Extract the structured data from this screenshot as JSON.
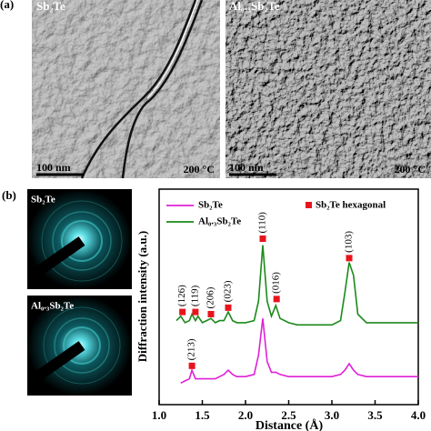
{
  "panel_a": {
    "label": "(a)",
    "images": [
      {
        "sample": "Sb₂Te",
        "scale_bar": "100 nm",
        "temperature": "200 °C"
      },
      {
        "sample": "Al₀.₃Sb₂Te",
        "scale_bar": "100 nm",
        "temperature": "200 °C"
      }
    ]
  },
  "panel_b": {
    "label": "(b)",
    "patterns": [
      "Sb₂Te",
      "Al₀.₃Sb₂Te"
    ]
  },
  "chart_data": {
    "type": "line",
    "xlabel": "Distance (Å)",
    "ylabel": "Diffraction intensity (a.u.)",
    "x": [
      1.0,
      1.1,
      1.2,
      1.25,
      1.3,
      1.35,
      1.38,
      1.42,
      1.45,
      1.5,
      1.55,
      1.6,
      1.65,
      1.7,
      1.75,
      1.8,
      1.85,
      1.9,
      2.0,
      2.1,
      2.15,
      2.2,
      2.25,
      2.3,
      2.35,
      2.4,
      2.5,
      2.6,
      2.8,
      3.0,
      3.1,
      3.15,
      3.2,
      3.25,
      3.3,
      3.4,
      3.6,
      3.8,
      4.0
    ],
    "series": [
      {
        "name": "Sb₂Te",
        "color": "#e020d8",
        "values": [
          null,
          null,
          null,
          1.0,
          1.1,
          1.2,
          1.6,
          1.2,
          1.2,
          1.2,
          1.2,
          1.2,
          1.2,
          1.3,
          1.4,
          1.6,
          1.4,
          1.3,
          1.3,
          1.4,
          2.3,
          4.0,
          2.0,
          1.5,
          1.5,
          1.4,
          1.3,
          1.3,
          1.3,
          1.3,
          1.4,
          1.6,
          1.9,
          1.6,
          1.4,
          1.3,
          1.3,
          1.3,
          1.3
        ]
      },
      {
        "name": "Al₀.₃Sb₂Te",
        "color": "#1a8a1a",
        "values": [
          null,
          null,
          3.9,
          4.1,
          3.8,
          3.9,
          4.2,
          3.9,
          4.1,
          3.8,
          3.9,
          4.0,
          3.8,
          3.9,
          3.9,
          4.3,
          3.9,
          3.8,
          3.8,
          3.9,
          4.8,
          7.4,
          4.8,
          4.1,
          4.6,
          4.0,
          3.8,
          3.7,
          3.7,
          3.7,
          3.9,
          5.2,
          6.6,
          6.0,
          4.2,
          3.8,
          3.8,
          3.8,
          3.8
        ]
      }
    ],
    "xlim": [
      1.0,
      4.0
    ],
    "xticks": [
      {
        "value": 1.0,
        "label": "1.0"
      },
      {
        "value": 1.5,
        "label": "1.5"
      },
      {
        "value": 2.0,
        "label": "2.0"
      },
      {
        "value": 2.5,
        "label": "2.5"
      },
      {
        "value": 3.0,
        "label": "3.0"
      },
      {
        "value": 3.5,
        "label": "3.5"
      },
      {
        "value": 4.0,
        "label": "4.0"
      }
    ],
    "ylim": [
      0,
      10
    ],
    "marker_legend": {
      "label": "Sb₂Te hexagonal",
      "color": "#e8141c"
    },
    "annotations": [
      {
        "text": "(126)",
        "x": 1.27,
        "y": 4.3
      },
      {
        "text": "(119)",
        "x": 1.42,
        "y": 4.3
      },
      {
        "text": "(206)",
        "x": 1.6,
        "y": 4.2
      },
      {
        "text": "(023)",
        "x": 1.8,
        "y": 4.5
      },
      {
        "text": "(110)",
        "x": 2.2,
        "y": 7.7
      },
      {
        "text": "(016)",
        "x": 2.36,
        "y": 4.9
      },
      {
        "text": "(103)",
        "x": 3.2,
        "y": 6.8
      },
      {
        "text": "(213)",
        "x": 1.38,
        "y": 1.8
      }
    ]
  }
}
